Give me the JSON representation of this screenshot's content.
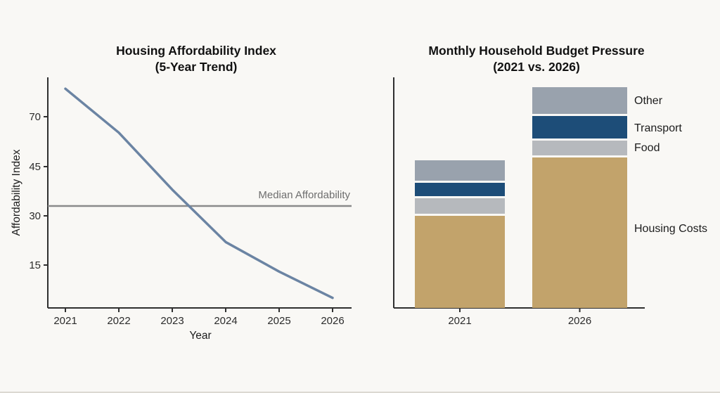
{
  "page": {
    "background": "#f9f8f5",
    "bottom_edge_color": "#dcd9d2"
  },
  "colors": {
    "line": "#6b84a3",
    "median_line": "#8a8a8a",
    "axis": "#2f2f2f",
    "housing": "#c2a36b",
    "food": "#b6b9bd",
    "transport": "#1d4d78",
    "other": "#99a2ad"
  },
  "left_chart": {
    "title_line1": "Housing Affordability Index",
    "title_line2": "(5-Year Trend)",
    "y_axis_label": "Affordability Index",
    "x_axis_label": "Year",
    "median_label": "Median Affordability"
  },
  "right_chart": {
    "title_line1": "Monthly Household Budget Pressure",
    "title_line2": "(2021 vs. 2026)"
  },
  "chart_data": [
    {
      "type": "line",
      "title": "Housing Affordability Index (5-Year Trend)",
      "xlabel": "Year",
      "ylabel": "Affordability Index",
      "x": [
        2021,
        2022,
        2023,
        2024,
        2025,
        2026
      ],
      "values": [
        84,
        62,
        38,
        22,
        13,
        5
      ],
      "yticks": [
        70,
        45,
        30,
        15
      ],
      "grid": false,
      "annotations": [
        {
          "type": "hline",
          "label": "Median Affordability",
          "value": 33
        }
      ],
      "line_color": "#6b84a3",
      "note": "y ticks 70/45/30/15 are rendered with equal pixel spacing in the source image"
    },
    {
      "type": "bar",
      "subtype": "stacked",
      "title": "Monthly Household Budget Pressure (2021 vs. 2026)",
      "categories": [
        "2021",
        "2026"
      ],
      "series": [
        {
          "name": "Housing Costs",
          "values": [
            131,
            214
          ],
          "color": "#c2a36b"
        },
        {
          "name": "Food",
          "values": [
            22,
            21
          ],
          "color": "#b6b9bd"
        },
        {
          "name": "Transport",
          "values": [
            19,
            32
          ],
          "color": "#1d4d78"
        },
        {
          "name": "Other",
          "values": [
            29,
            38
          ],
          "color": "#99a2ad"
        }
      ],
      "units": "relative height (no value axis shown)",
      "legend_position": "right",
      "grid": false
    }
  ]
}
